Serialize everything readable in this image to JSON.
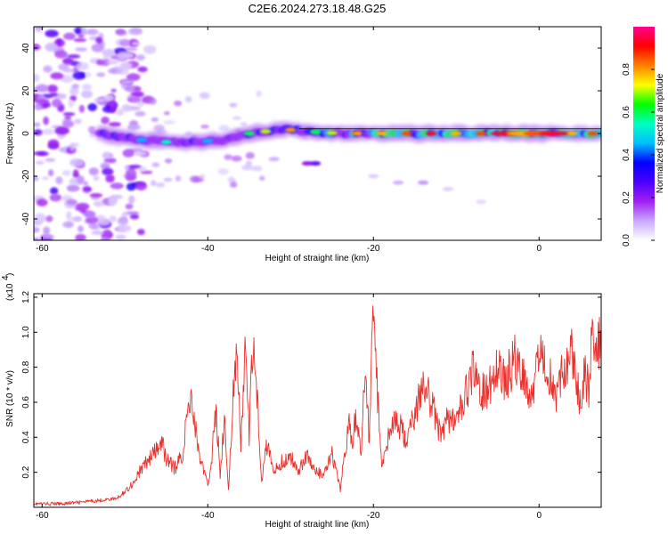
{
  "title": "C2E6.2024.273.18.48.G25",
  "colors": {
    "snr_line": "#e8312c",
    "frame": "#000000",
    "ridge_line": "#000000"
  },
  "chart_data": [
    {
      "type": "heatmap",
      "xlabel": "Height of straight line (km)",
      "ylabel": "Frequency (Hz)",
      "xlim": [
        -61,
        7.5
      ],
      "ylim": [
        -50,
        50
      ],
      "xticks": [
        -60,
        -40,
        -20,
        0
      ],
      "yticks": [
        -40,
        -20,
        0,
        20,
        40
      ],
      "colorbar": {
        "label": "Normalized spectral amplitude",
        "range": [
          0,
          1
        ],
        "ticks": [
          "0.0",
          "0.2",
          "0.4",
          "0.6",
          "0.8"
        ],
        "colormap": [
          "#ffffff",
          "#c8a8ff",
          "#a020f0",
          "#4a00ff",
          "#0000ff",
          "#00bfff",
          "#00ffc0",
          "#00ff00",
          "#ffff00",
          "#ff8000",
          "#ff0000",
          "#ff0090"
        ]
      },
      "ridge": {
        "x": [
          -53,
          -48,
          -45,
          -42,
          -38,
          -35,
          -31,
          -28,
          -24,
          -20,
          -15,
          -10,
          -5,
          0,
          5,
          7.5
        ],
        "frequency": [
          0,
          -3,
          -4,
          -4,
          -3,
          0,
          2,
          1,
          0,
          0,
          0,
          0,
          0,
          0,
          0,
          0
        ]
      }
    },
    {
      "type": "line",
      "xlabel": "Height of straight line (km)",
      "ylabel": "SNR (10 * v/v)",
      "yscale_label": "(x10",
      "yscale_exponent": "4",
      "xlim": [
        -61,
        7.5
      ],
      "ylim": [
        0,
        1.22
      ],
      "xticks": [
        -60,
        -40,
        -20,
        0
      ],
      "yticks": [
        "0.2",
        "0.4",
        "0.6",
        "0.8",
        "1.0",
        "1.2"
      ],
      "series": [
        {
          "x": [
            -61,
            -58,
            -55,
            -53,
            -51,
            -50,
            -49,
            -48,
            -47,
            -46,
            -45.5,
            -45,
            -44,
            -43,
            -42.5,
            -42,
            -41.5,
            -41,
            -40,
            -39.5,
            -39,
            -38.5,
            -38,
            -37.5,
            -37,
            -36.5,
            -36,
            -35.5,
            -35,
            -34.5,
            -34,
            -33.5,
            -33,
            -32,
            -31,
            -30,
            -29,
            -28,
            -27,
            -26,
            -25,
            -24,
            -23,
            -22.5,
            -22,
            -21.5,
            -21,
            -20.5,
            -20,
            -19.5,
            -19,
            -18,
            -17,
            -16,
            -15,
            -14,
            -13,
            -12,
            -11,
            -10,
            -9,
            -8,
            -7,
            -6,
            -5,
            -4,
            -3,
            -2,
            -1,
            0,
            1,
            2,
            3,
            4,
            4.5,
            5,
            5.5,
            6,
            6.5,
            7,
            7.5
          ],
          "values": [
            0.02,
            0.02,
            0.03,
            0.04,
            0.05,
            0.09,
            0.14,
            0.22,
            0.28,
            0.33,
            0.36,
            0.28,
            0.22,
            0.31,
            0.52,
            0.65,
            0.45,
            0.3,
            0.12,
            0.3,
            0.55,
            0.2,
            0.5,
            0.1,
            0.6,
            0.85,
            0.35,
            0.9,
            0.4,
            1.02,
            0.6,
            0.15,
            0.38,
            0.2,
            0.26,
            0.28,
            0.22,
            0.3,
            0.2,
            0.18,
            0.3,
            0.1,
            0.48,
            0.38,
            0.55,
            0.3,
            0.78,
            0.4,
            1.2,
            0.62,
            0.25,
            0.45,
            0.48,
            0.38,
            0.52,
            0.72,
            0.6,
            0.42,
            0.52,
            0.48,
            0.62,
            0.78,
            0.65,
            0.7,
            0.82,
            0.72,
            0.85,
            0.78,
            0.62,
            0.88,
            0.82,
            0.65,
            0.78,
            0.92,
            0.72,
            0.6,
            0.75,
            0.68,
            1.02,
            0.86,
            1.0
          ]
        }
      ]
    }
  ]
}
